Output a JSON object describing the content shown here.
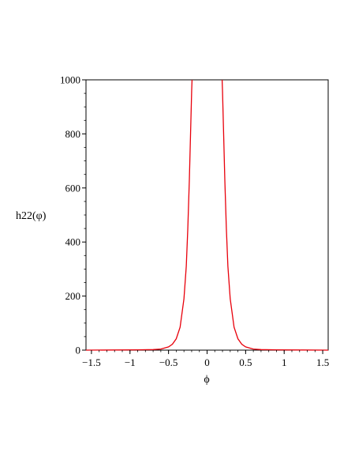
{
  "chart_data": {
    "type": "line",
    "title": "",
    "xlabel": "ϕ",
    "ylabel": "h22(φ)",
    "xlim": [
      -1.5708,
      1.5708
    ],
    "ylim": [
      0,
      1000
    ],
    "x_ticks": [
      -1.5,
      -1,
      -0.5,
      0,
      0.5,
      1,
      1.5
    ],
    "x_tick_labels": [
      "−1.5",
      "−1",
      "−0.5",
      "0",
      "0.5",
      "1",
      "1.5"
    ],
    "y_ticks": [
      0,
      200,
      400,
      600,
      800,
      1000
    ],
    "y_tick_labels": [
      "0",
      "200",
      "400",
      "600",
      "800",
      "1000"
    ],
    "grid": false,
    "series_color": "#e8000b",
    "series": [
      {
        "x": [
          -1.5708,
          -1.2,
          -0.9,
          -0.7,
          -0.6,
          -0.5,
          -0.45,
          -0.4,
          -0.35,
          -0.3,
          -0.27,
          -0.25,
          -0.23,
          -0.21,
          -0.2,
          -0.195,
          0.195,
          0.2,
          0.21,
          0.23,
          0.25,
          0.27,
          0.3,
          0.35,
          0.4,
          0.45,
          0.5,
          0.6,
          0.7,
          0.9,
          1.2,
          1.5708
        ],
        "y": [
          0,
          0.5,
          1,
          2,
          4,
          12,
          22,
          42,
          85,
          190,
          310,
          450,
          630,
          850,
          960,
          1000,
          1000,
          960,
          850,
          630,
          450,
          310,
          190,
          85,
          42,
          22,
          12,
          4,
          2,
          1,
          0.5,
          0
        ]
      }
    ]
  }
}
